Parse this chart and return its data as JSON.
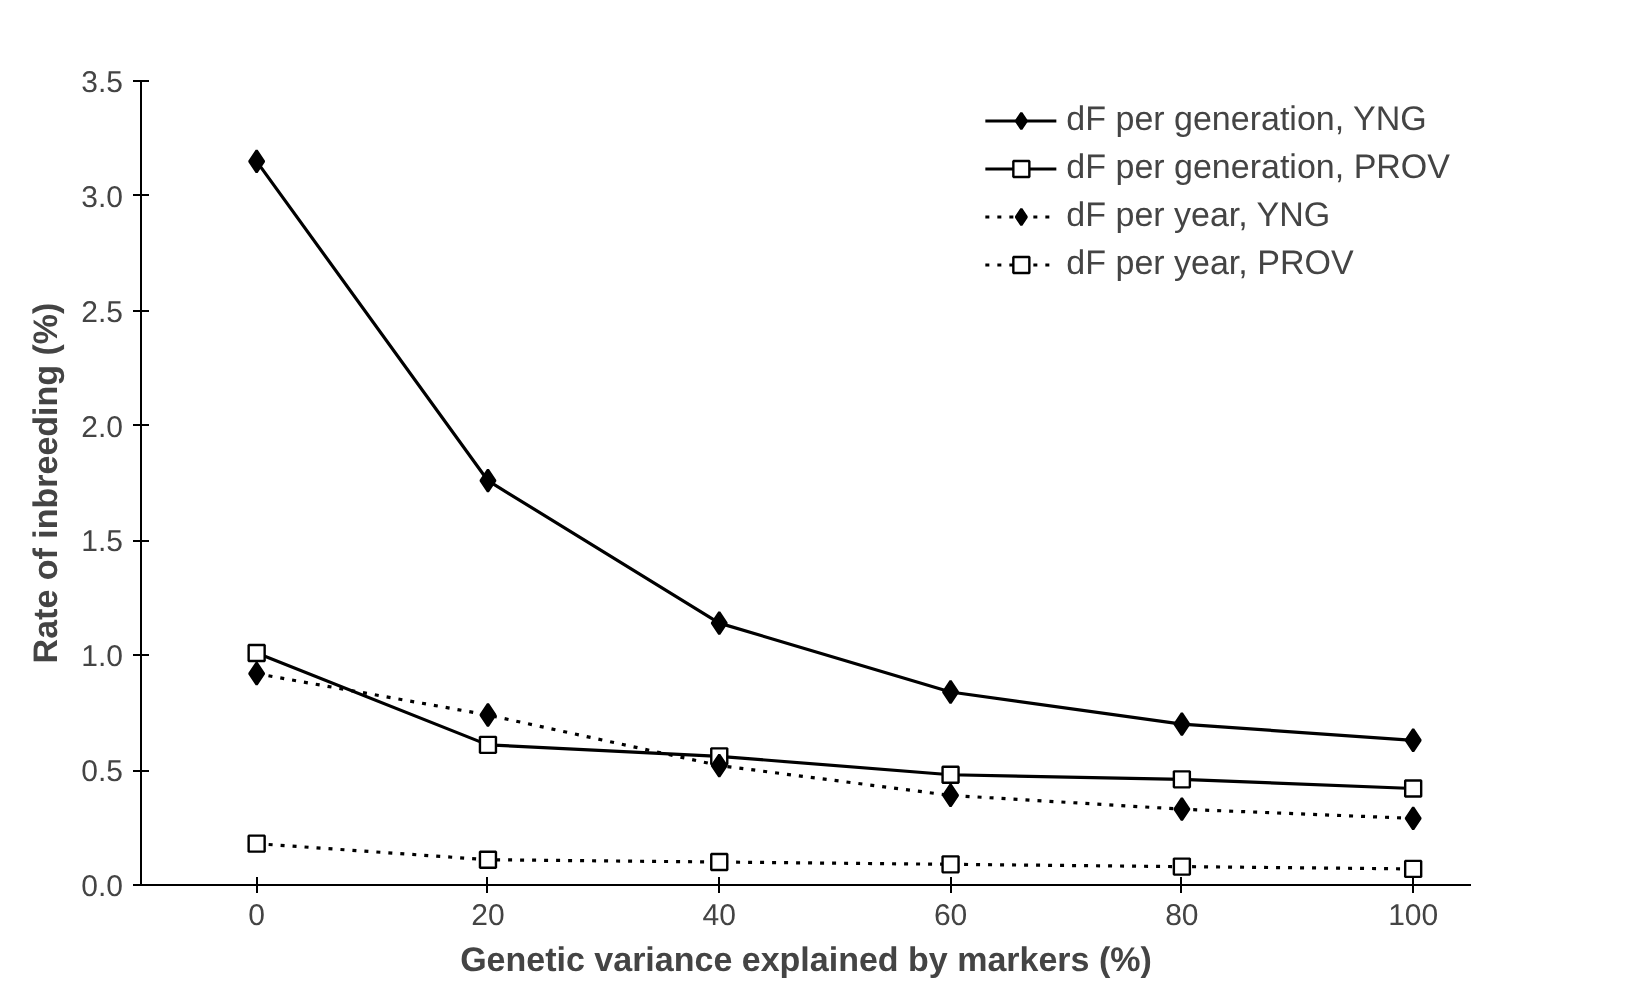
{
  "chart_data": {
    "type": "line",
    "xlabel": "Genetic variance explained by markers (%)",
    "ylabel": "Rate of inbreeding (%)",
    "x": [
      0,
      20,
      40,
      60,
      80,
      100
    ],
    "series": [
      {
        "name": "dF per generation, YNG",
        "color": "#000000",
        "marker": "diamond",
        "line_style": "solid",
        "values": [
          3.15,
          1.76,
          1.14,
          0.84,
          0.7,
          0.63
        ]
      },
      {
        "name": "dF per generation, PROV",
        "color": "#000000",
        "marker": "square",
        "line_style": "solid",
        "values": [
          1.01,
          0.61,
          0.56,
          0.48,
          0.46,
          0.42
        ]
      },
      {
        "name": "dF per year, YNG",
        "color": "#000000",
        "marker": "diamond",
        "line_style": "dotted",
        "values": [
          0.92,
          0.74,
          0.52,
          0.39,
          0.33,
          0.29
        ]
      },
      {
        "name": "dF per year, PROV",
        "color": "#000000",
        "marker": "square",
        "line_style": "dotted",
        "values": [
          0.18,
          0.11,
          0.1,
          0.09,
          0.08,
          0.07
        ]
      }
    ],
    "xlim": [
      -10,
      105
    ],
    "ylim": [
      0,
      3.5
    ],
    "xticks": [
      0,
      20,
      40,
      60,
      80,
      100
    ],
    "yticks": [
      {
        "value": 0,
        "label": "0.0"
      },
      {
        "value": 0.5,
        "label": "0.5"
      },
      {
        "value": 1,
        "label": "1.0"
      },
      {
        "value": 1.5,
        "label": "1.5"
      },
      {
        "value": 2,
        "label": "2.0"
      },
      {
        "value": 2.5,
        "label": "2.5"
      },
      {
        "value": 3,
        "label": "3.0"
      },
      {
        "value": 3.5,
        "label": "3.5"
      }
    ],
    "grid": false,
    "legend": "top right"
  }
}
